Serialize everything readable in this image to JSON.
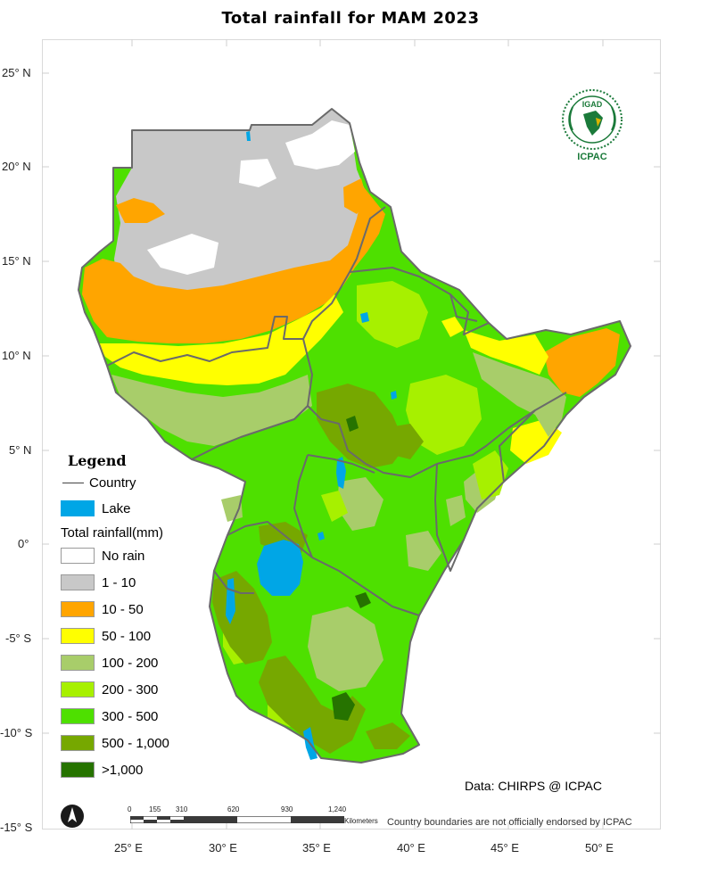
{
  "title": "Total rainfall  for  MAM  2023",
  "latitude_labels": [
    "25° N",
    "20° N",
    "15° N",
    "10° N",
    "5° N",
    "0°",
    "-5° S",
    "-10° S",
    "-15° S"
  ],
  "longitude_labels": [
    "25° E",
    "30° E",
    "35° E",
    "40° E",
    "45° E",
    "50° E"
  ],
  "legend": {
    "title": "Legend",
    "country_label": "Country",
    "lake_label": "Lake",
    "lake_color": "#00a6e6",
    "rainfall_title": "Total rainfall(mm)",
    "classes": [
      {
        "label": "No rain",
        "color": "#ffffff"
      },
      {
        "label": "1 - 10",
        "color": "#c8c8c8"
      },
      {
        "label": "10 - 50",
        "color": "#ffa500"
      },
      {
        "label": "50 - 100",
        "color": "#ffff00"
      },
      {
        "label": "100 - 200",
        "color": "#a8cd6a"
      },
      {
        "label": "200 - 300",
        "color": "#a7f000"
      },
      {
        "label": "300 - 500",
        "color": "#4ee000"
      },
      {
        "label": "500 - 1,000",
        "color": "#76a800"
      },
      {
        "label": ">1,000",
        "color": "#267300"
      }
    ]
  },
  "logo": {
    "top_text": "IGAD",
    "bottom_text": "ICPAC"
  },
  "credit": "Data: CHIRPS @ ICPAC",
  "disclaimer": "Country boundaries are not officially endorsed by ICPAC",
  "scale_bar": {
    "ticks": [
      "0",
      "155",
      "310",
      "620",
      "930",
      "1,240"
    ],
    "unit": "Kilometers"
  }
}
